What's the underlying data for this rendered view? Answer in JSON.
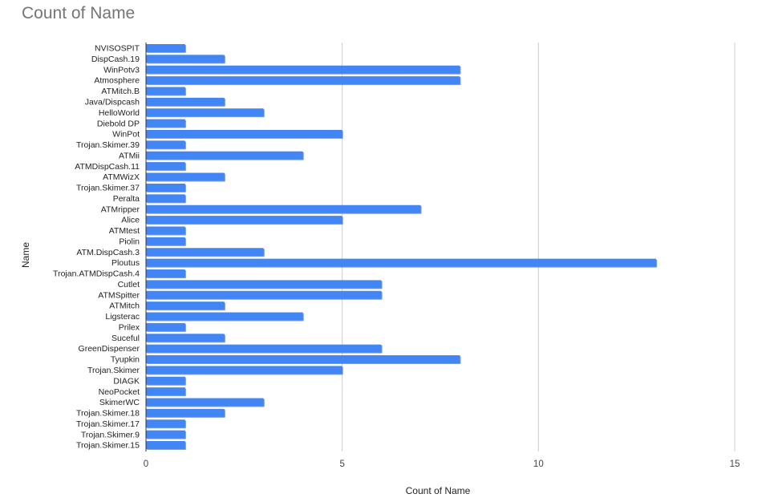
{
  "chart_data": {
    "type": "bar",
    "orientation": "horizontal",
    "title": "Count of Name",
    "xlabel": "Count of Name",
    "ylabel": "Name",
    "xlim": [
      0,
      15
    ],
    "xticks": [
      "0",
      "5",
      "10",
      "15"
    ],
    "grid": true,
    "legend": "none",
    "bar_color": "#4285f4",
    "categories": [
      "NVISOSPIT",
      "DispCash.19",
      "WinPotv3",
      "Atmosphere",
      "ATMitch.B",
      "Java/Dispcash",
      "HelloWorld",
      "Diebold DP",
      "WinPot",
      "Trojan.Skimer.39",
      "ATMii",
      "ATMDispCash.11",
      "ATMWizX",
      "Trojan.Skimer.37",
      "Peralta",
      "ATMripper",
      "Alice",
      "ATMtest",
      "Piolin",
      "ATM.DispCash.3",
      "Ploutus",
      "Trojan.ATMDispCash.4",
      "Cutlet",
      "ATMSpitter",
      "ATMitch",
      "Ligsterac",
      "Prilex",
      "Suceful",
      "GreenDispenser",
      "Tyupkin",
      "Trojan.Skimer",
      "DIAGK",
      "NeoPocket",
      "SkimerWC",
      "Trojan.Skimer.18",
      "Trojan.Skimer.17",
      "Trojan.Skimer.9",
      "Trojan.Skimer.15"
    ],
    "values": [
      1,
      2,
      8,
      8,
      1,
      2,
      3,
      1,
      5,
      1,
      4,
      1,
      2,
      1,
      1,
      7,
      5,
      1,
      1,
      3,
      13,
      1,
      6,
      6,
      2,
      4,
      1,
      2,
      6,
      8,
      5,
      1,
      1,
      3,
      2,
      1,
      1,
      1
    ]
  }
}
